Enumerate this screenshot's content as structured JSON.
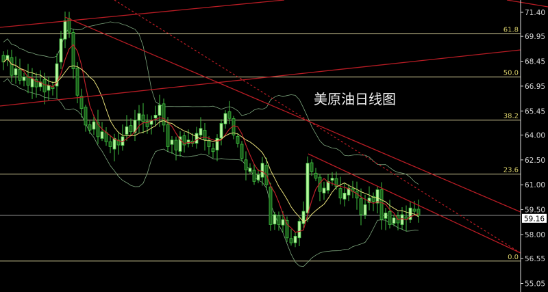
{
  "chart_data": {
    "type": "candlestick",
    "title": "美原油日线图",
    "ylim": [
      54.6,
      72.1
    ],
    "y_ticks": [
      "71.40",
      "69.95",
      "68.45",
      "66.95",
      "65.45",
      "64.00",
      "62.50",
      "61.00",
      "59.50",
      "58.00",
      "56.55",
      "55.05"
    ],
    "last_price": "59.16",
    "fib_levels": [
      {
        "label": "61.8",
        "price": 70.1
      },
      {
        "label": "50.0",
        "price": 67.5
      },
      {
        "label": "38.2",
        "price": 64.9
      },
      {
        "label": "23.6",
        "price": 61.65
      },
      {
        "label": "0.0",
        "price": 56.4
      }
    ],
    "closes": [
      68.4,
      68.8,
      67.6,
      68.0,
      67.3,
      67.5,
      67.0,
      67.4,
      66.9,
      67.2,
      66.6,
      67.0,
      66.8,
      68.3,
      69.8,
      70.9,
      70.2,
      68.0,
      66.4,
      65.6,
      64.6,
      64.3,
      64.8,
      63.9,
      64.2,
      63.6,
      63.3,
      63.8,
      63.4,
      63.9,
      64.5,
      64.2,
      64.9,
      65.3,
      64.8,
      64.5,
      64.9,
      65.2,
      65.8,
      64.6,
      63.3,
      63.7,
      63.1,
      63.9,
      63.4,
      63.7,
      63.5,
      64.1,
      64.4,
      63.7,
      63.3,
      63.0,
      63.8,
      64.7,
      65.3,
      65.0,
      64.0,
      63.5,
      62.6,
      61.9,
      62.0,
      61.2,
      61.6,
      62.3,
      61.0,
      58.6,
      59.2,
      58.6,
      58.9,
      57.8,
      57.5,
      57.9,
      58.8,
      59.4,
      62.3,
      61.8,
      61.4,
      60.6,
      60.8,
      61.2,
      61.4,
      60.9,
      60.2,
      60.5,
      60.8,
      60.6,
      60.2,
      59.2,
      59.8,
      60.2,
      60.0,
      60.7,
      58.9,
      59.3,
      58.6,
      59.0,
      58.7,
      59.2,
      58.9,
      59.6,
      59.4,
      59.16
    ],
    "indicators": [
      "MA5 (red)",
      "MA10 (yellow)",
      "Bollinger Bands (green)"
    ],
    "colors": {
      "background": "#000000",
      "candle": "#b8f5a0",
      "candle_outline": "#3fbf3f",
      "ma_fast": "#c0202a",
      "ma_slow": "#e8e07a",
      "bands": "#7fa87f",
      "fib": "#e0d8a0",
      "trendline": "#b81c24",
      "axis": "#e0e0e0"
    }
  }
}
